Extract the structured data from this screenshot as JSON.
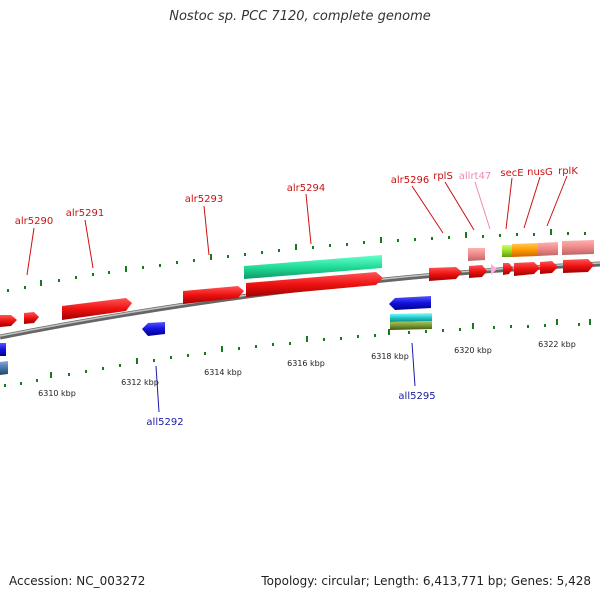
{
  "title": "Nostoc sp. PCC 7120, complete genome",
  "accession": "Accession: NC_003272",
  "summary": "Topology: circular; Length: 6,413,771 bp; Genes: 5,428",
  "colors": {
    "forward_label": "#cc1111",
    "reverse_label": "#1a1aa8",
    "rna_label": "#ee88bb",
    "tick": "#1a7a1a",
    "backbone": "#777777"
  },
  "scale_labels": [
    {
      "text": "6310 kbp"
    },
    {
      "text": "6312 kbp"
    },
    {
      "text": "6314 kbp"
    },
    {
      "text": "6316 kbp"
    },
    {
      "text": "6318 kbp"
    },
    {
      "text": "6320 kbp"
    },
    {
      "text": "6322 kbp"
    }
  ],
  "gene_labels": [
    {
      "text": "alr5290",
      "strand": "forward"
    },
    {
      "text": "alr5291",
      "strand": "forward"
    },
    {
      "text": "alr5293",
      "strand": "forward"
    },
    {
      "text": "alr5294",
      "strand": "forward"
    },
    {
      "text": "alr5296",
      "strand": "forward"
    },
    {
      "text": "rplS",
      "strand": "forward"
    },
    {
      "text": "allrt47",
      "strand": "rna"
    },
    {
      "text": "secE",
      "strand": "forward"
    },
    {
      "text": "nusG",
      "strand": "forward"
    },
    {
      "text": "rplK",
      "strand": "forward"
    },
    {
      "text": "all5292",
      "strand": "reverse"
    },
    {
      "text": "all5295",
      "strand": "reverse"
    }
  ]
}
